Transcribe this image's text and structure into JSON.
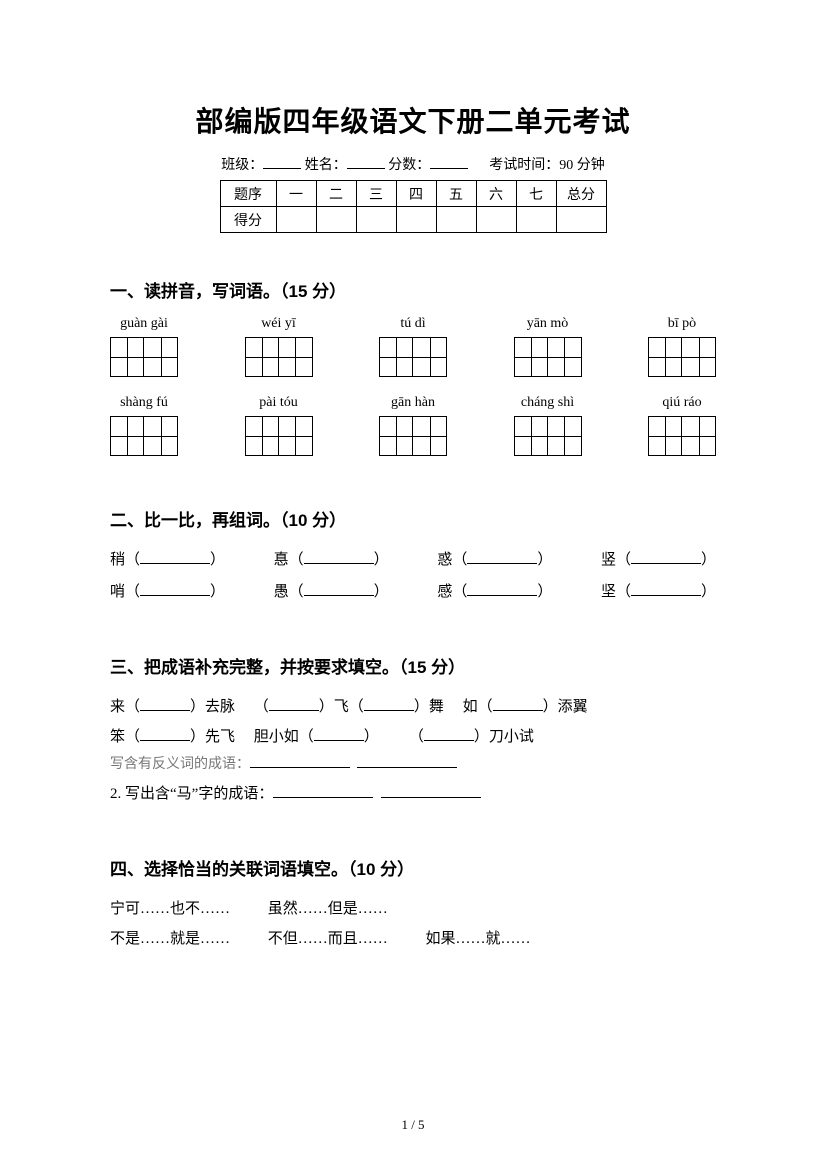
{
  "title": "部编版四年级语文下册二单元考试",
  "info": {
    "class_label": "班级：",
    "name_label": "姓名：",
    "score_label": "分数：",
    "time_label": "考试时间：90 分钟"
  },
  "score_table": {
    "row_header_1": "题序",
    "row_header_2": "得分",
    "cols": [
      "一",
      "二",
      "三",
      "四",
      "五",
      "六",
      "七",
      "总分"
    ]
  },
  "q1": {
    "title": "一、读拼音，写词语。（15 分）",
    "row1": [
      "guàn gài",
      "wéi yī",
      "tú dì",
      "yān mò",
      "bī pò"
    ],
    "row2": [
      "shàng fú",
      "pài tóu",
      "gān hàn",
      "cháng shì",
      "qiú ráo"
    ]
  },
  "q2": {
    "title": "二、比一比，再组词。（10 分）",
    "pairs": [
      [
        "稍",
        "哨"
      ],
      [
        "惪",
        "愚"
      ],
      [
        "惑",
        "感"
      ],
      [
        "竖",
        "坚"
      ]
    ]
  },
  "q3": {
    "title": "三、把成语补充完整，并按要求填空。（15 分）",
    "line1_a": "来（",
    "line1_b": "）去脉",
    "line1_c": "（",
    "line1_d": "）飞（",
    "line1_e": "）舞",
    "line1_f": "如（",
    "line1_g": "）添翼",
    "line2_a": "笨（",
    "line2_b": "）先飞",
    "line2_c": "胆小如（",
    "line2_d": "）",
    "line2_e": "（",
    "line2_f": "）刀小试",
    "sub1": "写含有反义词的成语：",
    "sub2": "2. 写出含“马”字的成语：",
    "subblank": ""
  },
  "q4": {
    "title": "四、选择恰当的关联词语填空。（10 分）",
    "opts_row1": [
      "宁可……也不……",
      "虽然……但是……"
    ],
    "opts_row2": [
      "不是……就是……",
      "不但……而且……",
      "如果……就……"
    ]
  },
  "pager": "1 / 5"
}
